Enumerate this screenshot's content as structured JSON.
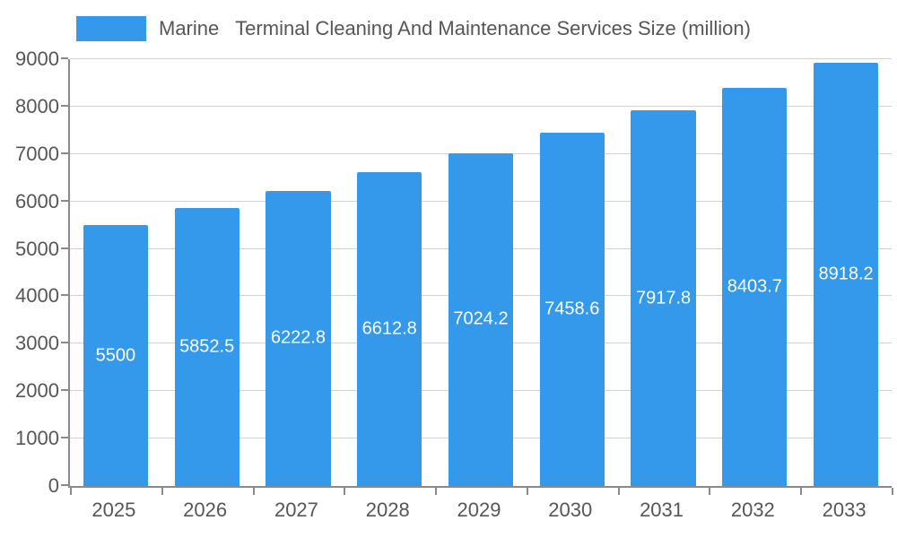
{
  "legend": {
    "label": "Marine   Terminal Cleaning And Maintenance Services Size (million)"
  },
  "colors": {
    "bar": "#3498eb",
    "grid": "#d2d2d2",
    "axis": "#8a8a8a",
    "text": "#565656",
    "bar_label_text": "#ffffff"
  },
  "chart_data": {
    "type": "bar",
    "title": "Marine   Terminal Cleaning And Maintenance Services Size (million)",
    "categories": [
      "2025",
      "2026",
      "2027",
      "2028",
      "2029",
      "2030",
      "2031",
      "2032",
      "2033"
    ],
    "values": [
      5500,
      5852.5,
      6222.8,
      6612.8,
      7024.2,
      7458.6,
      7917.8,
      8403.7,
      8918.2
    ],
    "bar_labels": [
      "5500",
      "5852.5",
      "6222.8",
      "6612.8",
      "7024.2",
      "7458.6",
      "7917.8",
      "8403.7",
      "8918.2"
    ],
    "xlabel": "",
    "ylabel": "",
    "ylim": [
      0,
      9000
    ],
    "ytick_step": 1000,
    "yticks": [
      0,
      1000,
      2000,
      3000,
      4000,
      5000,
      6000,
      7000,
      8000,
      9000
    ],
    "grid": true,
    "legend_position": "top-left",
    "bar_label_position": "center-inside"
  }
}
